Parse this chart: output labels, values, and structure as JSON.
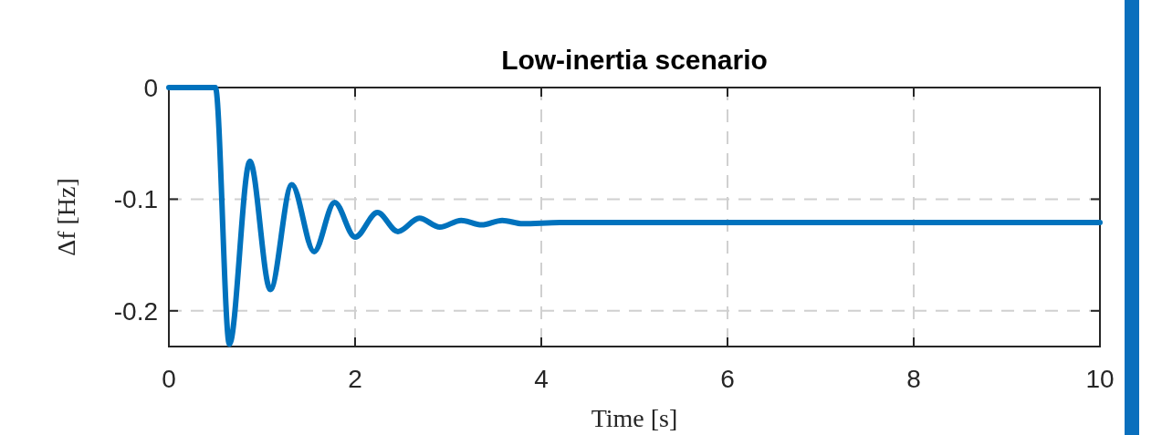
{
  "chart_data": {
    "type": "line",
    "title": "Low-inertia scenario",
    "xlabel": "Time [s]",
    "ylabel": "Δf [Hz]",
    "xlim": [
      0,
      10
    ],
    "xticks": [
      0,
      2,
      4,
      6,
      8,
      10
    ],
    "ylim": [
      -0.232,
      0
    ],
    "yticks": [
      -0.2,
      -0.1,
      0
    ],
    "grid": true,
    "line_style": "solid",
    "series": [
      {
        "color": "#0072bd",
        "x": [
          0,
          0.5,
          0.65,
          0.87,
          1.09,
          1.32,
          1.56,
          1.78,
          2.0,
          2.24,
          2.46,
          2.69,
          2.91,
          3.14,
          3.36,
          3.58,
          3.8,
          4.2,
          5,
          10
        ],
        "values": [
          0,
          0,
          -0.23,
          -0.066,
          -0.181,
          -0.087,
          -0.147,
          -0.103,
          -0.134,
          -0.112,
          -0.129,
          -0.117,
          -0.125,
          -0.119,
          -0.123,
          -0.119,
          -0.122,
          -0.121,
          -0.121,
          -0.121
        ]
      }
    ]
  }
}
